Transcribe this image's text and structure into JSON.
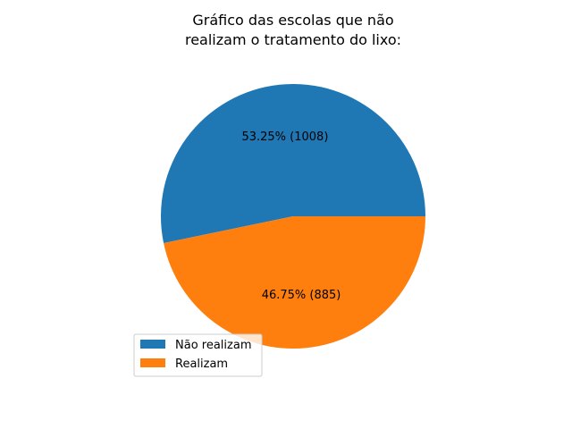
{
  "chart_data": {
    "type": "pie",
    "title_lines": [
      "Gráfico das escolas que não",
      "realizam o tratamento do lixo:"
    ],
    "slices": [
      {
        "label": "Não realizam",
        "value": 1008,
        "percent_label": "53.25%  (1008)",
        "color": "#1f77b4"
      },
      {
        "label": "Realizam",
        "value": 885,
        "percent_label": "46.75%  (885)",
        "color": "#ff7f0e"
      }
    ],
    "legend_position": "lower-left"
  }
}
